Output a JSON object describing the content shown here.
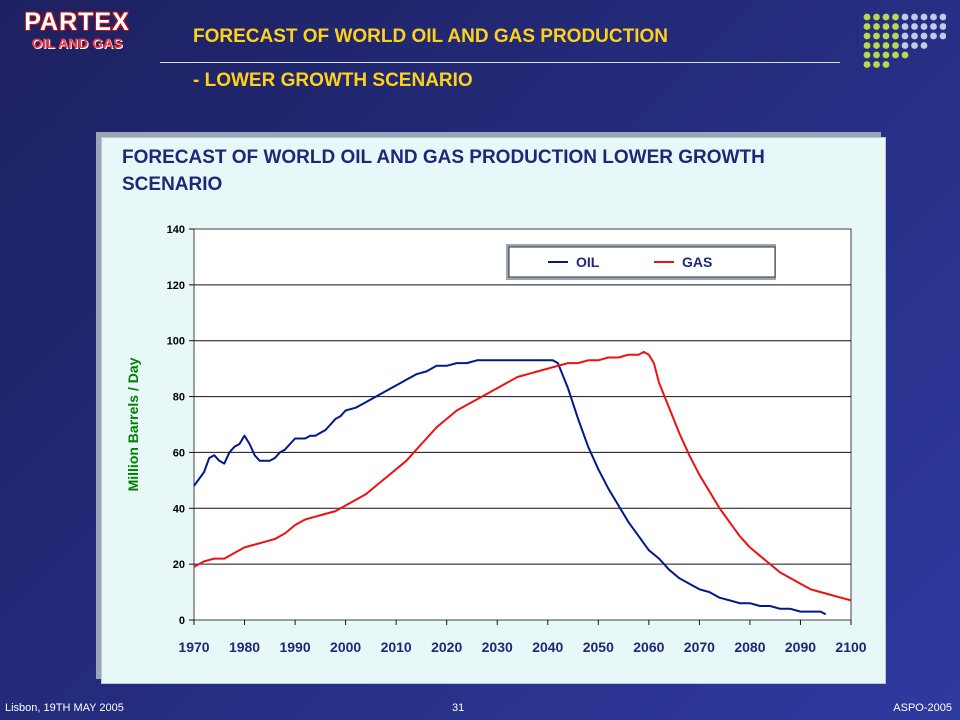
{
  "logo": {
    "main": "PARTEX",
    "sub": "OIL AND GAS"
  },
  "slide": {
    "title_line1": "FORECAST OF WORLD OIL AND GAS PRODUCTION",
    "title_line2": "- LOWER GROWTH SCENARIO"
  },
  "footer": {
    "left": "Lisbon, 19TH MAY 2005",
    "center": "31",
    "right": "ASPO-2005"
  },
  "colors": {
    "oil": "#001a8c",
    "gas": "#ee1111",
    "background": "#232a78",
    "title": "#ffd21a",
    "panel": "#e8f7f7",
    "axis_label": "#008000"
  },
  "chart_data": {
    "type": "line",
    "title": "FORECAST OF WORLD OIL AND GAS PRODUCTION LOWER GROWTH SCENARIO",
    "xlabel": "",
    "ylabel": "Million Barrels / Day",
    "xlim": [
      1970,
      2100
    ],
    "ylim": [
      0,
      140
    ],
    "x_ticks": [
      1970,
      1980,
      1990,
      2000,
      2010,
      2020,
      2030,
      2040,
      2050,
      2060,
      2070,
      2080,
      2090,
      2100
    ],
    "y_ticks": [
      0,
      20,
      40,
      60,
      80,
      100,
      120,
      140
    ],
    "grid": "horizontal",
    "legend": {
      "placement": "top-right",
      "entries": [
        "OIL",
        "GAS"
      ]
    },
    "series": [
      {
        "name": "OIL",
        "color": "#001a8c",
        "points": [
          [
            1970,
            48
          ],
          [
            1972,
            53
          ],
          [
            1973,
            58
          ],
          [
            1974,
            59
          ],
          [
            1975,
            57
          ],
          [
            1976,
            56
          ],
          [
            1977,
            60
          ],
          [
            1978,
            62
          ],
          [
            1979,
            63
          ],
          [
            1980,
            66
          ],
          [
            1981,
            63
          ],
          [
            1982,
            59
          ],
          [
            1983,
            57
          ],
          [
            1984,
            57
          ],
          [
            1985,
            57
          ],
          [
            1986,
            58
          ],
          [
            1987,
            60
          ],
          [
            1988,
            61
          ],
          [
            1989,
            63
          ],
          [
            1990,
            65
          ],
          [
            1991,
            65
          ],
          [
            1992,
            65
          ],
          [
            1993,
            66
          ],
          [
            1994,
            66
          ],
          [
            1995,
            67
          ],
          [
            1996,
            68
          ],
          [
            1997,
            70
          ],
          [
            1998,
            72
          ],
          [
            1999,
            73
          ],
          [
            2000,
            75
          ],
          [
            2002,
            76
          ],
          [
            2004,
            78
          ],
          [
            2006,
            80
          ],
          [
            2008,
            82
          ],
          [
            2010,
            84
          ],
          [
            2012,
            86
          ],
          [
            2014,
            88
          ],
          [
            2016,
            89
          ],
          [
            2018,
            91
          ],
          [
            2020,
            91
          ],
          [
            2022,
            92
          ],
          [
            2024,
            92
          ],
          [
            2026,
            93
          ],
          [
            2028,
            93
          ],
          [
            2030,
            93
          ],
          [
            2032,
            93
          ],
          [
            2034,
            93
          ],
          [
            2036,
            93
          ],
          [
            2038,
            93
          ],
          [
            2040,
            93
          ],
          [
            2041,
            93
          ],
          [
            2042,
            92
          ],
          [
            2044,
            83
          ],
          [
            2046,
            72
          ],
          [
            2048,
            62
          ],
          [
            2050,
            54
          ],
          [
            2052,
            47
          ],
          [
            2054,
            41
          ],
          [
            2056,
            35
          ],
          [
            2058,
            30
          ],
          [
            2060,
            25
          ],
          [
            2062,
            22
          ],
          [
            2064,
            18
          ],
          [
            2066,
            15
          ],
          [
            2068,
            13
          ],
          [
            2070,
            11
          ],
          [
            2072,
            10
          ],
          [
            2074,
            8
          ],
          [
            2076,
            7
          ],
          [
            2078,
            6
          ],
          [
            2080,
            6
          ],
          [
            2082,
            5
          ],
          [
            2084,
            5
          ],
          [
            2086,
            4
          ],
          [
            2088,
            4
          ],
          [
            2090,
            3
          ],
          [
            2092,
            3
          ],
          [
            2094,
            3
          ],
          [
            2095,
            2
          ]
        ]
      },
      {
        "name": "GAS",
        "color": "#ee1111",
        "points": [
          [
            1970,
            19
          ],
          [
            1972,
            21
          ],
          [
            1974,
            22
          ],
          [
            1976,
            22
          ],
          [
            1978,
            24
          ],
          [
            1980,
            26
          ],
          [
            1982,
            27
          ],
          [
            1984,
            28
          ],
          [
            1986,
            29
          ],
          [
            1988,
            31
          ],
          [
            1990,
            34
          ],
          [
            1992,
            36
          ],
          [
            1994,
            37
          ],
          [
            1996,
            38
          ],
          [
            1998,
            39
          ],
          [
            2000,
            41
          ],
          [
            2002,
            43
          ],
          [
            2004,
            45
          ],
          [
            2006,
            48
          ],
          [
            2008,
            51
          ],
          [
            2010,
            54
          ],
          [
            2012,
            57
          ],
          [
            2014,
            61
          ],
          [
            2016,
            65
          ],
          [
            2018,
            69
          ],
          [
            2020,
            72
          ],
          [
            2022,
            75
          ],
          [
            2024,
            77
          ],
          [
            2026,
            79
          ],
          [
            2028,
            81
          ],
          [
            2030,
            83
          ],
          [
            2032,
            85
          ],
          [
            2034,
            87
          ],
          [
            2036,
            88
          ],
          [
            2038,
            89
          ],
          [
            2040,
            90
          ],
          [
            2042,
            91
          ],
          [
            2044,
            92
          ],
          [
            2046,
            92
          ],
          [
            2048,
            93
          ],
          [
            2050,
            93
          ],
          [
            2052,
            94
          ],
          [
            2054,
            94
          ],
          [
            2056,
            95
          ],
          [
            2058,
            95
          ],
          [
            2059,
            96
          ],
          [
            2060,
            95
          ],
          [
            2061,
            92
          ],
          [
            2062,
            85
          ],
          [
            2064,
            76
          ],
          [
            2066,
            67
          ],
          [
            2068,
            59
          ],
          [
            2070,
            52
          ],
          [
            2072,
            46
          ],
          [
            2074,
            40
          ],
          [
            2076,
            35
          ],
          [
            2078,
            30
          ],
          [
            2080,
            26
          ],
          [
            2082,
            23
          ],
          [
            2084,
            20
          ],
          [
            2086,
            17
          ],
          [
            2088,
            15
          ],
          [
            2090,
            13
          ],
          [
            2092,
            11
          ],
          [
            2094,
            10
          ],
          [
            2096,
            9
          ],
          [
            2098,
            8
          ],
          [
            2100,
            7
          ]
        ]
      }
    ]
  }
}
